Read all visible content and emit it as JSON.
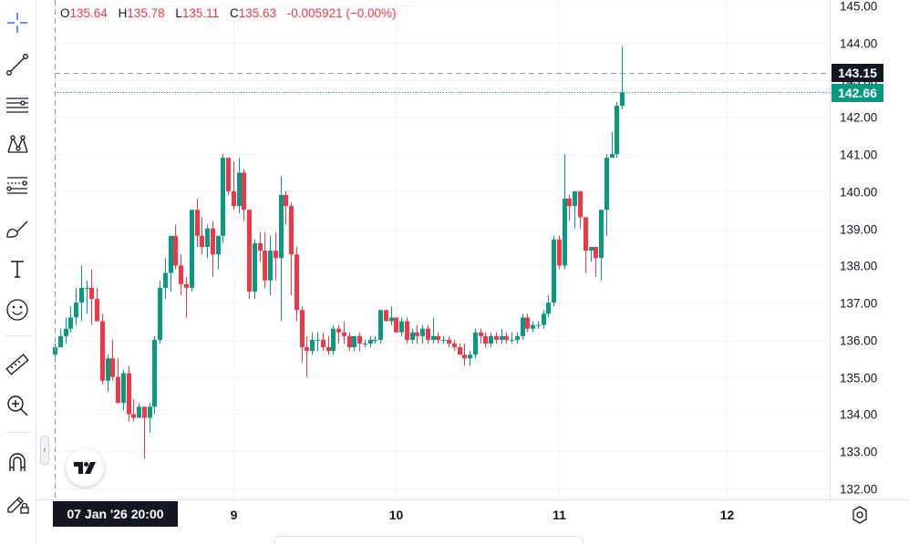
{
  "legend": {
    "open_label": "O",
    "open": "135.64",
    "high_label": "H",
    "high": "135.78",
    "low_label": "L",
    "low": "135.11",
    "close_label": "C",
    "close": "135.63",
    "change": "-0.005921 (−0.00%)"
  },
  "crosshair": {
    "time_label": "07 Jan '26  20:00",
    "price_label": "143.15",
    "price": 143.15
  },
  "last_price": {
    "label": "142.66",
    "price": 142.66
  },
  "price_axis": {
    "ticks": [
      "145.00",
      "144.00",
      "143.00",
      "142.00",
      "141.00",
      "140.00",
      "139.00",
      "138.00",
      "137.00",
      "136.00",
      "135.00",
      "134.00",
      "133.00",
      "132.00"
    ],
    "min": 132.0,
    "max": 145.0
  },
  "time_axis": {
    "ticks": [
      "9",
      "10",
      "11",
      "12"
    ]
  },
  "toolbar": {
    "tools": [
      "crosshair-icon",
      "trend-line-icon",
      "horizontal-lines-icon",
      "pattern-icon",
      "fib-icon",
      "brush-icon",
      "text-icon",
      "emoji-icon",
      "ruler-icon",
      "zoom-icon",
      "magnet-icon",
      "lock-pencil-icon"
    ]
  },
  "colors": {
    "up": "#089981",
    "down": "#f23645",
    "grid": "#f0f3fa",
    "axis_text": "#131722"
  },
  "chart_data": {
    "type": "candlestick",
    "note_x": "bar index (hourly bars); time labels 9,10,11,12 mark day starts",
    "x_labels": {
      "9": 34,
      "10": 65,
      "11": 96,
      "12": 128
    },
    "ylim": [
      132.0,
      145.0
    ],
    "candles": [
      [
        135.6,
        135.9,
        135.4,
        135.8
      ],
      [
        135.8,
        136.3,
        135.8,
        136.1
      ],
      [
        136.1,
        136.6,
        135.9,
        136.3
      ],
      [
        136.3,
        136.9,
        136.2,
        136.6
      ],
      [
        136.6,
        137.4,
        136.4,
        137.0
      ],
      [
        137.0,
        138.0,
        136.5,
        137.4
      ],
      [
        137.4,
        137.6,
        136.7,
        137.4
      ],
      [
        137.4,
        137.9,
        136.4,
        137.1
      ],
      [
        137.1,
        137.4,
        136.6,
        136.5
      ],
      [
        136.5,
        136.7,
        134.8,
        134.9
      ],
      [
        134.9,
        135.6,
        134.6,
        135.5
      ],
      [
        135.5,
        136.0,
        134.9,
        135.0
      ],
      [
        135.0,
        135.5,
        134.3,
        134.3
      ],
      [
        134.3,
        135.2,
        134.1,
        135.1
      ],
      [
        135.1,
        135.3,
        133.8,
        134.0
      ],
      [
        134.0,
        134.4,
        133.8,
        133.9
      ],
      [
        133.9,
        134.3,
        133.9,
        134.2
      ],
      [
        134.2,
        134.2,
        132.8,
        133.9
      ],
      [
        133.9,
        134.3,
        133.5,
        134.2
      ],
      [
        134.2,
        136.1,
        134.0,
        136.0
      ],
      [
        136.0,
        137.6,
        135.9,
        137.4
      ],
      [
        137.4,
        138.2,
        137.1,
        137.8
      ],
      [
        137.8,
        138.8,
        137.3,
        138.8
      ],
      [
        138.8,
        139.1,
        137.9,
        138.0
      ],
      [
        138.0,
        138.3,
        137.2,
        137.5
      ],
      [
        137.5,
        137.7,
        136.6,
        137.4
      ],
      [
        137.4,
        139.5,
        137.3,
        139.5
      ],
      [
        139.5,
        139.8,
        138.5,
        138.8
      ],
      [
        138.8,
        139.3,
        138.3,
        138.5
      ],
      [
        138.5,
        139.1,
        138.2,
        139.0
      ],
      [
        139.0,
        139.2,
        137.7,
        138.3
      ],
      [
        138.3,
        138.8,
        137.9,
        138.8
      ],
      [
        138.8,
        141.0,
        138.6,
        140.9
      ],
      [
        140.9,
        140.9,
        139.9,
        140.0
      ],
      [
        140.0,
        140.8,
        139.5,
        139.6
      ],
      [
        139.6,
        140.9,
        139.4,
        140.5
      ],
      [
        140.5,
        140.6,
        139.2,
        139.5
      ],
      [
        139.5,
        139.5,
        137.1,
        137.3
      ],
      [
        137.3,
        138.7,
        137.1,
        138.6
      ],
      [
        138.6,
        138.9,
        138.1,
        138.4
      ],
      [
        138.4,
        138.9,
        137.4,
        137.6
      ],
      [
        137.6,
        138.8,
        137.2,
        138.4
      ],
      [
        138.4,
        138.9,
        137.6,
        138.2
      ],
      [
        138.2,
        140.4,
        136.5,
        139.9
      ],
      [
        139.9,
        140.0,
        139.1,
        139.6
      ],
      [
        139.6,
        139.7,
        137.2,
        138.3
      ],
      [
        138.3,
        138.5,
        136.5,
        136.8
      ],
      [
        136.8,
        136.9,
        135.4,
        135.8
      ],
      [
        135.8,
        136.1,
        135.0,
        135.7
      ],
      [
        135.7,
        136.2,
        135.6,
        136.0
      ],
      [
        136.0,
        136.2,
        135.7,
        136.0
      ],
      [
        136.0,
        136.2,
        135.7,
        135.8
      ],
      [
        135.8,
        136.1,
        135.6,
        135.7
      ],
      [
        135.7,
        136.4,
        135.6,
        136.3
      ],
      [
        136.3,
        136.4,
        135.9,
        136.2
      ],
      [
        136.2,
        136.5,
        135.9,
        136.1
      ],
      [
        136.1,
        136.2,
        135.7,
        135.8
      ],
      [
        135.8,
        136.1,
        135.7,
        136.1
      ],
      [
        136.1,
        136.2,
        135.7,
        135.9
      ],
      [
        135.9,
        136.0,
        135.8,
        135.9
      ],
      [
        135.9,
        136.1,
        135.8,
        136.0
      ],
      [
        136.0,
        136.1,
        135.9,
        136.0
      ],
      [
        136.0,
        136.8,
        135.9,
        136.8
      ],
      [
        136.8,
        136.8,
        136.5,
        136.5
      ],
      [
        136.5,
        136.9,
        136.4,
        136.6
      ],
      [
        136.6,
        136.6,
        136.2,
        136.2
      ],
      [
        136.2,
        136.6,
        136.1,
        136.5
      ],
      [
        136.5,
        136.6,
        135.9,
        136.0
      ],
      [
        136.0,
        136.3,
        135.9,
        136.2
      ],
      [
        136.2,
        136.4,
        135.9,
        136.1
      ],
      [
        136.1,
        136.4,
        135.9,
        136.3
      ],
      [
        136.3,
        136.4,
        135.9,
        136.0
      ],
      [
        136.0,
        136.6,
        135.9,
        136.1
      ],
      [
        136.1,
        136.2,
        135.9,
        136.0
      ],
      [
        136.0,
        136.1,
        135.9,
        136.0
      ],
      [
        136.0,
        136.1,
        135.8,
        135.9
      ],
      [
        135.9,
        136.0,
        135.7,
        135.8
      ],
      [
        135.8,
        135.9,
        135.6,
        135.6
      ],
      [
        135.6,
        135.9,
        135.3,
        135.5
      ],
      [
        135.5,
        135.7,
        135.3,
        135.6
      ],
      [
        135.6,
        136.3,
        135.5,
        136.2
      ],
      [
        136.2,
        136.3,
        135.9,
        136.1
      ],
      [
        136.1,
        136.2,
        135.8,
        135.9
      ],
      [
        135.9,
        136.2,
        135.8,
        136.1
      ],
      [
        136.1,
        136.2,
        135.9,
        136.0
      ],
      [
        136.0,
        136.3,
        135.9,
        136.1
      ],
      [
        136.1,
        136.2,
        135.9,
        136.0
      ],
      [
        136.0,
        136.2,
        135.9,
        136.0
      ],
      [
        136.0,
        136.2,
        135.9,
        136.1
      ],
      [
        136.1,
        136.7,
        136.0,
        136.6
      ],
      [
        136.6,
        136.7,
        136.2,
        136.3
      ],
      [
        136.3,
        136.5,
        136.2,
        136.4
      ],
      [
        136.4,
        136.5,
        136.3,
        136.4
      ],
      [
        136.4,
        136.8,
        136.3,
        136.7
      ],
      [
        136.7,
        137.2,
        136.6,
        137.0
      ],
      [
        137.0,
        138.8,
        136.9,
        138.7
      ],
      [
        138.7,
        138.8,
        137.9,
        138.0
      ],
      [
        138.0,
        141.0,
        137.9,
        139.8
      ],
      [
        139.8,
        139.9,
        139.2,
        139.6
      ],
      [
        139.6,
        140.0,
        139.0,
        140.0
      ],
      [
        140.0,
        140.0,
        139.0,
        139.3
      ],
      [
        139.3,
        139.3,
        137.8,
        138.4
      ],
      [
        138.4,
        138.5,
        138.1,
        138.5
      ],
      [
        138.5,
        138.5,
        137.7,
        138.2
      ],
      [
        138.2,
        139.5,
        137.6,
        139.5
      ],
      [
        139.5,
        141.0,
        138.8,
        140.9
      ],
      [
        140.9,
        141.6,
        140.9,
        141.0
      ],
      [
        141.0,
        142.4,
        140.9,
        142.3
      ],
      [
        142.3,
        143.9,
        142.2,
        142.66
      ]
    ]
  }
}
